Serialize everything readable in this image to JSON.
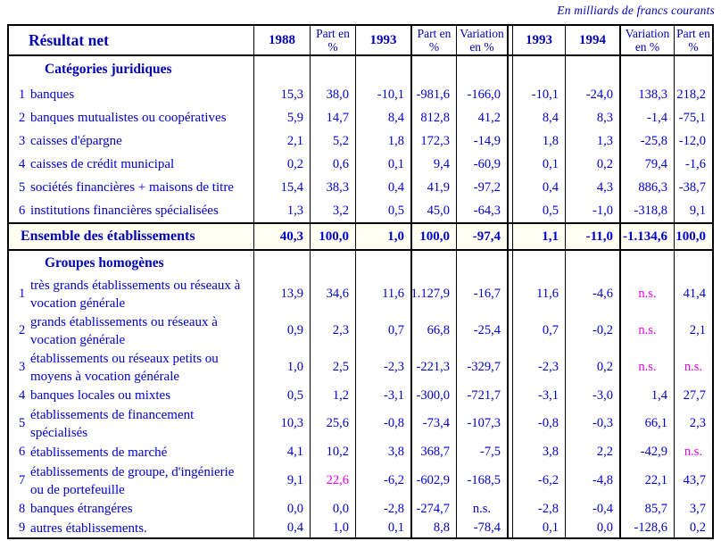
{
  "note": "En milliards de francs courants",
  "colors": {
    "blue": "#0000cc",
    "blue_dark": "#0000b4",
    "pink": "#ee00ee",
    "grid": "#000000",
    "total_row_bg": "#fffff2"
  },
  "table": {
    "title": "Résultat net",
    "headers": [
      {
        "label": "1988",
        "year": true
      },
      {
        "label": "Part en %",
        "year": false
      },
      {
        "label": "1993",
        "year": true
      },
      {
        "label": "Part en %",
        "year": false
      },
      {
        "label": "Variation en %",
        "year": false
      },
      {
        "label": "1993",
        "year": true
      },
      {
        "label": "1994",
        "year": true
      },
      {
        "label": "Variation en %",
        "year": false
      },
      {
        "label": "Part en %",
        "year": false
      }
    ],
    "sections": [
      {
        "heading": "Catégories juridiques",
        "rows": [
          {
            "num": "1",
            "label": "banques",
            "values": [
              "15,3",
              "38,0",
              "-10,1",
              "-981,6",
              "-166,0",
              "-10,1",
              "-24,0",
              "138,3",
              "218,2"
            ],
            "pink": []
          },
          {
            "num": "2",
            "label": "banques mutualistes ou coopératives",
            "values": [
              "5,9",
              "14,7",
              "8,4",
              "812,8",
              "41,2",
              "8,4",
              "8,3",
              "-1,4",
              "-75,1"
            ],
            "pink": []
          },
          {
            "num": "3",
            "label": "caisses d'épargne",
            "values": [
              "2,1",
              "5,2",
              "1,8",
              "172,3",
              "-14,9",
              "1,8",
              "1,3",
              "-25,8",
              "-12,0"
            ],
            "pink": []
          },
          {
            "num": "4",
            "label": "caisses de crédit municipal",
            "values": [
              "0,2",
              "0,6",
              "0,1",
              "9,4",
              "-60,9",
              "0,1",
              "0,2",
              "79,4",
              "-1,6"
            ],
            "pink": []
          },
          {
            "num": "5",
            "label": "sociétés financières + maisons de titre",
            "values": [
              "15,4",
              "38,3",
              "0,4",
              "41,9",
              "-97,2",
              "0,4",
              "4,3",
              "886,3",
              "-38,7"
            ],
            "pink": []
          },
          {
            "num": "6",
            "label": "institutions financières spécialisées",
            "values": [
              "1,3",
              "3,2",
              "0,5",
              "45,0",
              "-64,3",
              "0,5",
              "-1,0",
              "-318,8",
              "9,1"
            ],
            "pink": []
          }
        ]
      },
      {
        "heading": "Groupes homogènes",
        "rows": [
          {
            "num": "1",
            "label": "très grands établissements ou réseaux à vocation générale",
            "values": [
              "13,9",
              "34,6",
              "11,6",
              "1.127,9",
              "-16,7",
              "11,6",
              "-4,6",
              "n.s.",
              "41,4"
            ],
            "pink": [
              7
            ]
          },
          {
            "num": "2",
            "label": "grands établissements ou réseaux à vocation générale",
            "values": [
              "0,9",
              "2,3",
              "0,7",
              "66,8",
              "-25,4",
              "0,7",
              "-0,2",
              "n.s.",
              "2,1"
            ],
            "pink": [
              7
            ]
          },
          {
            "num": "3",
            "label": "établissements ou réseaux petits ou moyens à vocation générale",
            "values": [
              "1,0",
              "2,5",
              "-2,3",
              "-221,3",
              "-329,7",
              "-2,3",
              "0,2",
              "n.s.",
              "n.s."
            ],
            "pink": [
              7,
              8
            ]
          },
          {
            "num": "4",
            "label": "banques locales ou mixtes",
            "values": [
              "0,5",
              "1,2",
              "-3,1",
              "-300,0",
              "-721,7",
              "-3,1",
              "-3,0",
              "1,4",
              "27,7"
            ],
            "pink": []
          },
          {
            "num": "5",
            "label": "établissements de financement spécialisés",
            "values": [
              "10,3",
              "25,6",
              "-0,8",
              "-73,4",
              "-107,3",
              "-0,8",
              "-0,3",
              "66,1",
              "2,3"
            ],
            "pink": []
          },
          {
            "num": "6",
            "label": "établissements de marché",
            "values": [
              "4,1",
              "10,2",
              "3,8",
              "368,7",
              "-7,5",
              "3,8",
              "2,2",
              "-42,9",
              "n.s."
            ],
            "pink": [
              8
            ]
          },
          {
            "num": "7",
            "label": "établissements de groupe, d'ingénierie ou de portefeuille",
            "values": [
              "9,1",
              "22,6",
              "-6,2",
              "-602,9",
              "-168,5",
              "-6,2",
              "-4,8",
              "22,1",
              "43,7"
            ],
            "pink": [
              1
            ]
          },
          {
            "num": "8",
            "label": "banques étrangéres",
            "values": [
              "0,0",
              "0,0",
              "-2,8",
              "-274,7",
              "n.s.",
              "-2,8",
              "-0,4",
              "85,7",
              "3,7"
            ],
            "pink": []
          },
          {
            "num": "9",
            "label": "autres établissements.",
            "values": [
              "0,4",
              "1,0",
              "0,1",
              "8,8",
              "-78,4",
              "0,1",
              "0,0",
              "-128,6",
              "0,2"
            ],
            "pink": []
          }
        ]
      }
    ],
    "total": {
      "label": "Ensemble des établissements",
      "values": [
        "40,3",
        "100,0",
        "1,0",
        "100,0",
        "-97,4",
        "1,1",
        "-11,0",
        "-1.134,6",
        "100,0"
      ]
    }
  }
}
